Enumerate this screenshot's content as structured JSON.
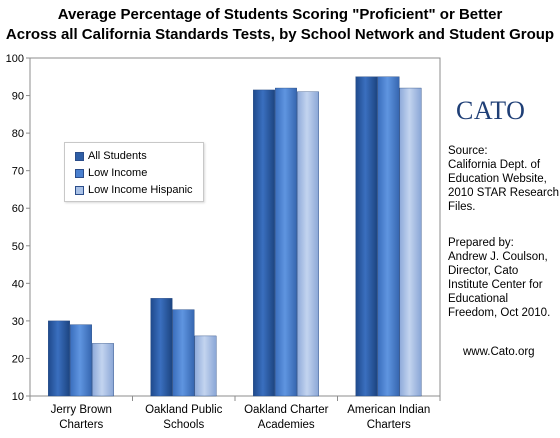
{
  "chart_data": {
    "type": "bar",
    "title_line1": "Average Percentage of Students Scoring \"Proficient\" or Better",
    "title_line2": "Across all California Standards Tests, by School Network and Student Group",
    "categories": [
      [
        "Jerry Brown",
        "Charters"
      ],
      [
        "Oakland Public",
        "Schools"
      ],
      [
        "Oakland Charter",
        "Academies"
      ],
      [
        "American Indian",
        "Charters"
      ]
    ],
    "series": [
      {
        "name": "All Students",
        "values": [
          30,
          36,
          91.5,
          95
        ],
        "color": "#2e5ea6"
      },
      {
        "name": "Low Income",
        "values": [
          29,
          33,
          92,
          95
        ],
        "color": "#4a80cf"
      },
      {
        "name": "Low Income Hispanic",
        "values": [
          24,
          26,
          91,
          92
        ],
        "color": "#a9c1e6"
      }
    ],
    "ylim": [
      10,
      100
    ],
    "yticks": [
      10,
      20,
      30,
      40,
      50,
      60,
      70,
      80,
      90,
      100
    ],
    "grid": false,
    "legend_position": "upper-left-inside"
  },
  "sidebar": {
    "logo": "CATO",
    "source_lines": [
      "Source:",
      "California Dept. of",
      "Education Website,",
      "2010 STAR Research",
      "Files."
    ],
    "prepared_lines": [
      "Prepared by:",
      "Andrew J. Coulson,",
      "Director, Cato",
      "Institute Center for",
      "Educational",
      "Freedom, Oct 2010."
    ],
    "website": "www.Cato.org"
  }
}
